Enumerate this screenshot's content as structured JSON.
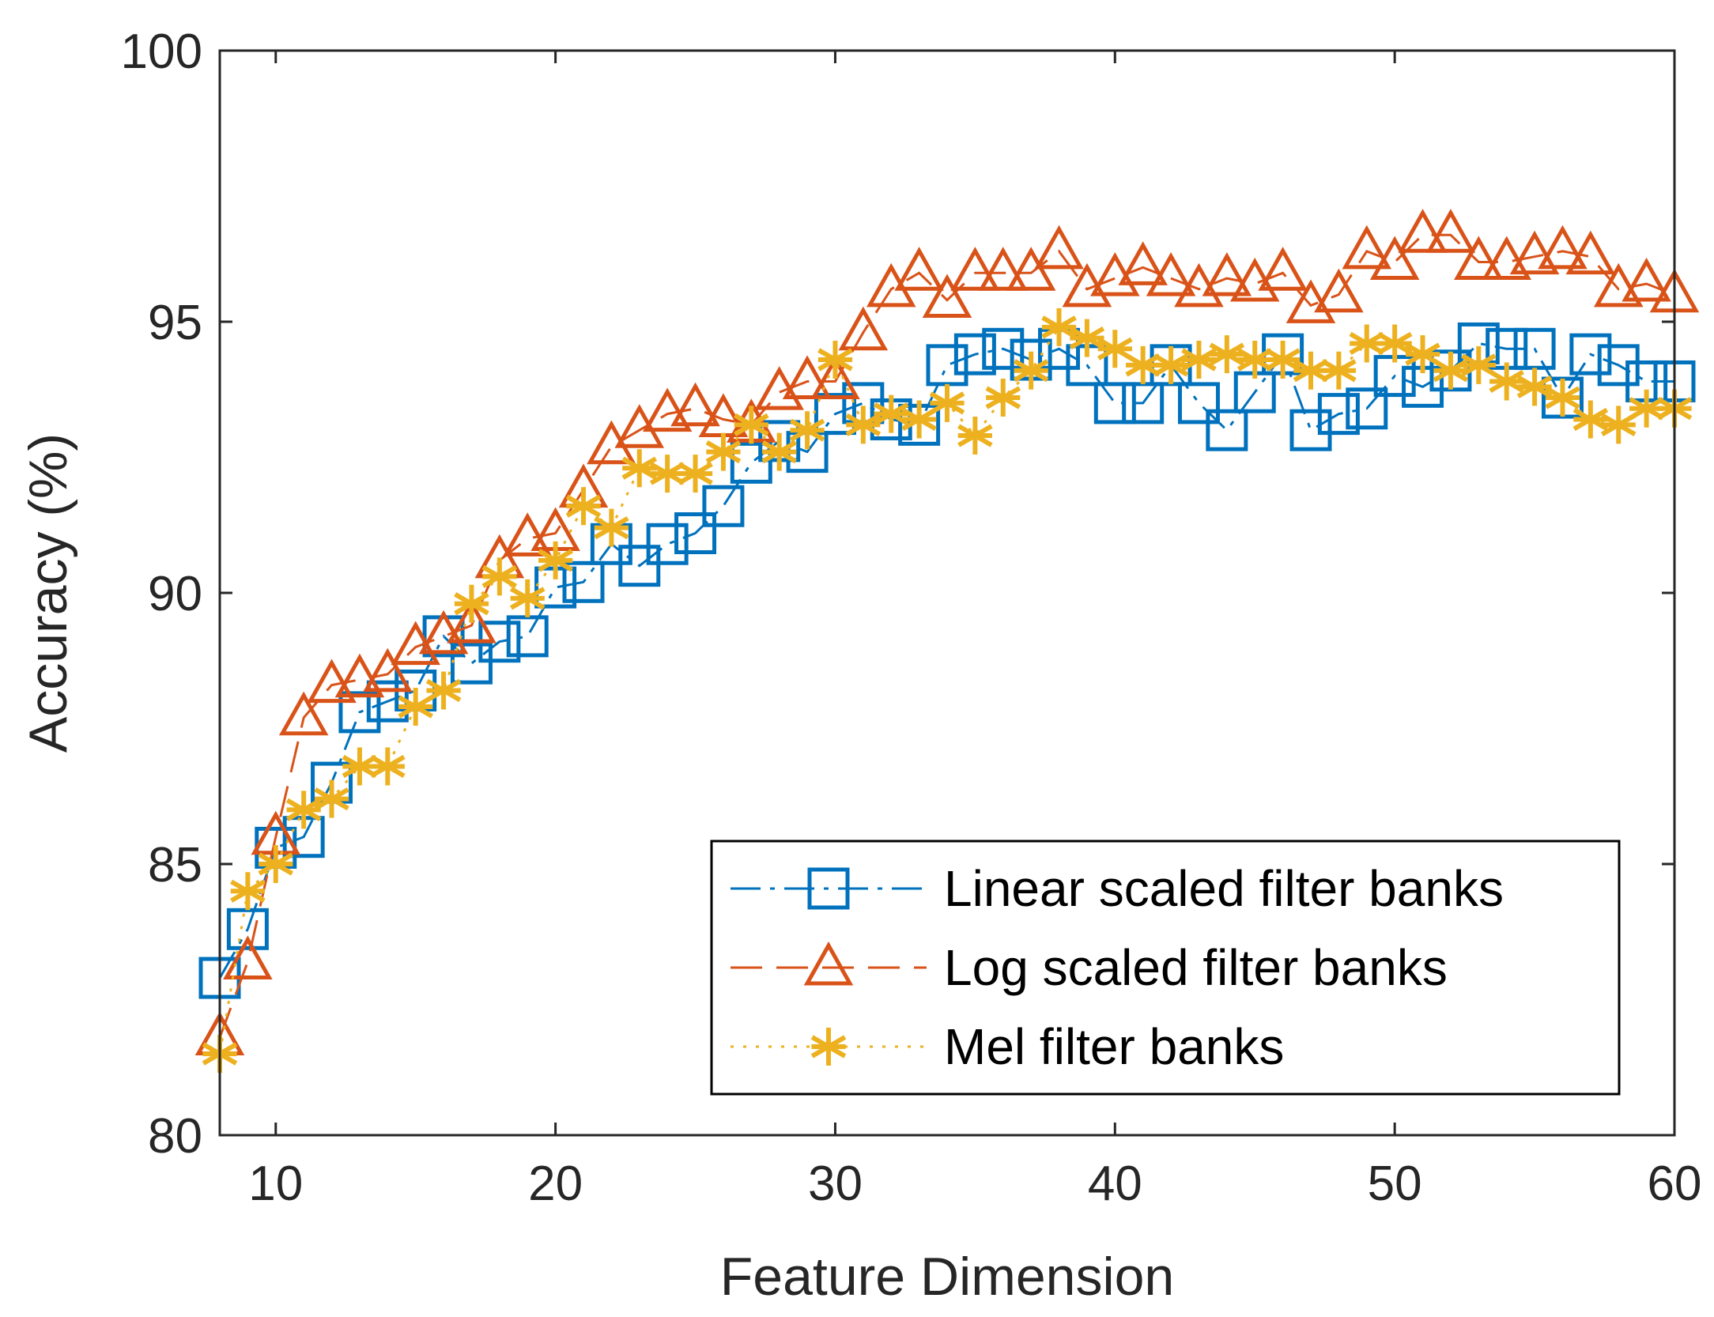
{
  "chart_data": {
    "type": "line",
    "title": "",
    "xlabel": "Feature Dimension",
    "ylabel": "Accuracy (%)",
    "xlim": [
      8,
      60
    ],
    "ylim": [
      80,
      100
    ],
    "xticks": [
      10,
      20,
      30,
      40,
      50,
      60
    ],
    "yticks": [
      80,
      85,
      90,
      95,
      100
    ],
    "xtick_labels": [
      "10",
      "20",
      "30",
      "40",
      "50",
      "60"
    ],
    "ytick_labels": [
      "80",
      "85",
      "90",
      "95",
      "100"
    ],
    "legend_position": "bottom-right",
    "x": [
      8,
      9,
      10,
      11,
      12,
      13,
      14,
      15,
      16,
      17,
      18,
      19,
      20,
      21,
      22,
      23,
      24,
      25,
      26,
      27,
      28,
      29,
      30,
      31,
      32,
      33,
      34,
      35,
      36,
      37,
      38,
      39,
      40,
      41,
      42,
      43,
      44,
      45,
      46,
      47,
      48,
      49,
      50,
      51,
      52,
      53,
      54,
      55,
      56,
      57,
      58,
      59,
      60
    ],
    "series": [
      {
        "name": "Linear scaled filter banks",
        "color": "#0072BD",
        "marker": "square",
        "line_style": "dashdot",
        "values": [
          82.9,
          83.8,
          85.3,
          85.5,
          86.5,
          87.8,
          88.0,
          88.2,
          89.2,
          88.7,
          89.1,
          89.2,
          90.1,
          90.2,
          90.9,
          90.5,
          90.9,
          91.1,
          91.6,
          92.4,
          92.8,
          92.6,
          93.3,
          93.5,
          93.2,
          93.1,
          94.2,
          94.4,
          94.5,
          94.3,
          94.5,
          94.2,
          93.5,
          93.5,
          94.2,
          93.5,
          93.0,
          93.7,
          94.4,
          93.0,
          93.3,
          93.4,
          94.0,
          93.8,
          94.1,
          94.6,
          94.5,
          94.5,
          93.6,
          94.4,
          94.2,
          93.9,
          93.9
        ]
      },
      {
        "name": "Log scaled filter banks",
        "color": "#D95319",
        "marker": "triangle",
        "line_style": "dashed",
        "values": [
          81.8,
          83.2,
          85.5,
          87.7,
          88.3,
          88.4,
          88.5,
          89.0,
          89.2,
          89.4,
          90.6,
          91.0,
          91.1,
          91.9,
          92.7,
          93.0,
          93.3,
          93.4,
          93.2,
          93.1,
          93.7,
          93.9,
          93.9,
          94.8,
          95.6,
          95.9,
          95.4,
          95.9,
          95.9,
          95.9,
          96.3,
          95.6,
          95.8,
          96.0,
          95.8,
          95.6,
          95.8,
          95.7,
          95.9,
          95.3,
          95.5,
          96.3,
          96.1,
          96.6,
          96.6,
          96.1,
          96.1,
          96.2,
          96.3,
          96.2,
          95.6,
          95.7,
          95.5
        ]
      },
      {
        "name": "Mel filter banks",
        "color": "#EDB120",
        "marker": "asterisk",
        "line_style": "dotted",
        "values": [
          81.5,
          84.5,
          85.0,
          86.0,
          86.2,
          86.8,
          86.8,
          87.9,
          88.2,
          89.8,
          90.3,
          89.9,
          90.6,
          91.6,
          91.2,
          92.3,
          92.2,
          92.2,
          92.6,
          93.1,
          92.6,
          93.0,
          94.3,
          93.1,
          93.3,
          93.2,
          93.5,
          92.9,
          93.6,
          94.1,
          94.9,
          94.7,
          94.5,
          94.2,
          94.2,
          94.3,
          94.4,
          94.3,
          94.3,
          94.1,
          94.1,
          94.6,
          94.6,
          94.4,
          94.1,
          94.2,
          93.9,
          93.8,
          93.6,
          93.2,
          93.1,
          93.4,
          93.4
        ]
      }
    ]
  }
}
